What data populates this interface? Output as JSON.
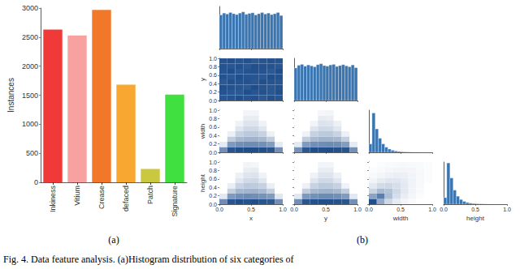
{
  "chart_data": [
    {
      "type": "bar",
      "ylabel": "Instances",
      "categories": [
        "Inkiness",
        "Vitium",
        "Crease",
        "defaced",
        "Patch",
        "Signature"
      ],
      "values": [
        2630,
        2530,
        2970,
        1680,
        230,
        1510
      ],
      "colors": [
        "#f03a3a",
        "#f7a1a1",
        "#f07828",
        "#f8a830",
        "#c9c83e",
        "#3fe03f"
      ],
      "ylim": [
        0,
        3000
      ],
      "yticks": [
        0,
        500,
        1000,
        1500,
        2000,
        2500,
        3000
      ],
      "grid": false
    },
    {
      "type": "histogram",
      "color": "#3b75af",
      "bins": [
        0,
        0.05,
        0.1,
        0.15,
        0.2,
        0.25,
        0.3,
        0.35,
        0.4,
        0.45,
        0.5,
        0.55,
        0.6,
        0.65,
        0.7,
        0.75,
        0.8,
        0.85,
        0.9,
        0.95,
        1
      ],
      "counts": [
        560,
        590,
        575,
        600,
        580,
        565,
        590,
        610,
        570,
        585,
        595,
        560,
        580,
        600,
        575,
        590,
        565,
        580,
        600,
        550
      ],
      "xlim": [
        0,
        1
      ],
      "ylim": [
        0,
        700
      ],
      "xticks": [
        {
          "value": 0,
          "label": "0.0"
        },
        0.5,
        {
          "value": 1,
          "label": "1.0"
        }
      ],
      "tick_labels": false
    },
    {
      "type": "heatmap",
      "color": "#1f4e8c",
      "ylabel": "y",
      "xbins": [
        0,
        0.125,
        0.25,
        0.375,
        0.5,
        0.625,
        0.75,
        0.875,
        1
      ],
      "ybins": [
        0,
        0.125,
        0.25,
        0.375,
        0.5,
        0.625,
        0.75,
        0.875,
        1
      ],
      "counts": [
        [
          175,
          182,
          190,
          178,
          185,
          172,
          188,
          180
        ],
        [
          183,
          176,
          171,
          192,
          180,
          186,
          174,
          189
        ],
        [
          190,
          185,
          178,
          170,
          194,
          181,
          176,
          183
        ],
        [
          172,
          188,
          184,
          186,
          175,
          190,
          182,
          177
        ],
        [
          186,
          174,
          192,
          181,
          179,
          173,
          191,
          185
        ],
        [
          179,
          191,
          176,
          184,
          188,
          182,
          170,
          194
        ],
        [
          184,
          177,
          187,
          173,
          190,
          185,
          183,
          176
        ],
        [
          181,
          189,
          180,
          188,
          172,
          178,
          186,
          182
        ]
      ],
      "xlim": [
        0,
        1
      ],
      "ylim": [
        0,
        1
      ],
      "xticks": [
        {
          "value": 0,
          "label": "0.0"
        },
        0.5,
        {
          "value": 1,
          "label": "1.0"
        }
      ],
      "yticks": [
        {
          "value": 0,
          "label": "0.0"
        },
        0.2,
        0.4,
        0.6,
        0.8,
        {
          "value": 1,
          "label": "1.0"
        }
      ],
      "tick_labels": "y"
    },
    {
      "type": "histogram",
      "color": "#3b75af",
      "bins": [
        0,
        0.05,
        0.1,
        0.15,
        0.2,
        0.25,
        0.3,
        0.35,
        0.4,
        0.45,
        0.5,
        0.55,
        0.6,
        0.65,
        0.7,
        0.75,
        0.8,
        0.85,
        0.9,
        0.95,
        1
      ],
      "counts": [
        540,
        585,
        600,
        570,
        590,
        575,
        560,
        595,
        610,
        580,
        570,
        590,
        600,
        565,
        580,
        595,
        575,
        560,
        590,
        545
      ],
      "xlim": [
        0,
        1
      ],
      "ylim": [
        0,
        700
      ],
      "xticks": [
        {
          "value": 0,
          "label": "0.0"
        },
        0.5,
        {
          "value": 1,
          "label": "1.0"
        }
      ],
      "tick_labels": false
    },
    {
      "type": "heatmap",
      "color": "#1f4e8c",
      "ylabel": "width",
      "xbins": [
        0,
        0.125,
        0.25,
        0.375,
        0.5,
        0.625,
        0.75,
        0.875,
        1
      ],
      "ybins": [
        0,
        0.125,
        0.25,
        0.375,
        0.5,
        0.625,
        0.75,
        0.875,
        1
      ],
      "counts": [
        [
          300,
          700,
          750,
          760,
          760,
          740,
          700,
          300
        ],
        [
          10,
          250,
          300,
          320,
          320,
          300,
          240,
          10
        ],
        [
          0,
          60,
          120,
          140,
          140,
          120,
          60,
          0
        ],
        [
          0,
          5,
          50,
          70,
          70,
          50,
          5,
          0
        ],
        [
          0,
          0,
          15,
          35,
          35,
          15,
          0,
          0
        ],
        [
          0,
          0,
          4,
          18,
          18,
          4,
          0,
          0
        ],
        [
          0,
          0,
          0,
          8,
          8,
          0,
          0,
          0
        ],
        [
          0,
          0,
          0,
          3,
          3,
          0,
          0,
          0
        ]
      ],
      "xlim": [
        0,
        1
      ],
      "ylim": [
        0,
        1
      ],
      "xticks": [
        {
          "value": 0,
          "label": "0.0"
        },
        0.5,
        {
          "value": 1,
          "label": "1.0"
        }
      ],
      "yticks": [
        {
          "value": 0,
          "label": "0.0"
        },
        0.2,
        0.4,
        0.6,
        0.8,
        {
          "value": 1,
          "label": "1.0"
        }
      ],
      "tick_labels": "y"
    },
    {
      "type": "heatmap",
      "color": "#1f4e8c",
      "xbins": [
        0,
        0.125,
        0.25,
        0.375,
        0.5,
        0.625,
        0.75,
        0.875,
        1
      ],
      "ybins": [
        0,
        0.125,
        0.25,
        0.375,
        0.5,
        0.625,
        0.75,
        0.875,
        1
      ],
      "counts": [
        [
          290,
          690,
          760,
          750,
          770,
          735,
          710,
          295
        ],
        [
          11,
          245,
          305,
          315,
          325,
          310,
          235,
          9
        ],
        [
          0,
          62,
          118,
          142,
          138,
          125,
          57,
          0
        ],
        [
          0,
          4,
          52,
          68,
          72,
          48,
          5,
          0
        ],
        [
          0,
          0,
          16,
          34,
          33,
          14,
          0,
          0
        ],
        [
          0,
          0,
          3,
          19,
          17,
          5,
          0,
          0
        ],
        [
          0,
          0,
          0,
          9,
          7,
          0,
          0,
          0
        ],
        [
          0,
          0,
          0,
          2,
          3,
          0,
          0,
          0
        ]
      ],
      "xlim": [
        0,
        1
      ],
      "ylim": [
        0,
        1
      ],
      "xticks": [
        {
          "value": 0,
          "label": "0.0"
        },
        0.5,
        {
          "value": 1,
          "label": "1.0"
        }
      ],
      "yticks": [
        {
          "value": 0,
          "label": "0.0"
        },
        0.2,
        0.4,
        0.6,
        0.8,
        {
          "value": 1,
          "label": "1.0"
        }
      ],
      "tick_labels": false
    },
    {
      "type": "histogram",
      "color": "#3b75af",
      "bins": [
        0,
        0.05,
        0.1,
        0.15,
        0.2,
        0.25,
        0.3,
        0.35,
        0.4,
        0.45,
        0.5,
        0.55,
        0.6,
        0.65,
        0.7,
        0.75,
        0.8,
        0.85,
        0.9,
        0.95,
        1
      ],
      "counts": [
        900,
        4200,
        2500,
        1500,
        900,
        550,
        350,
        220,
        140,
        90,
        60,
        40,
        25,
        15,
        10,
        6,
        4,
        2,
        1,
        1
      ],
      "xlim": [
        0,
        1
      ],
      "ylim": [
        0,
        4500
      ],
      "xticks": [
        {
          "value": 0,
          "label": "0.0"
        },
        0.5,
        {
          "value": 1,
          "label": "1.0"
        }
      ],
      "tick_labels": false
    },
    {
      "type": "heatmap",
      "color": "#1f4e8c",
      "xlabel": "x",
      "ylabel": "height",
      "xbins": [
        0,
        0.125,
        0.25,
        0.375,
        0.5,
        0.625,
        0.75,
        0.875,
        1
      ],
      "ybins": [
        0,
        0.125,
        0.25,
        0.375,
        0.5,
        0.625,
        0.75,
        0.875,
        1
      ],
      "counts": [
        [
          320,
          720,
          770,
          740,
          780,
          730,
          690,
          310
        ],
        [
          12,
          260,
          310,
          330,
          315,
          295,
          250,
          14
        ],
        [
          0,
          55,
          125,
          135,
          145,
          118,
          58,
          0
        ],
        [
          0,
          6,
          48,
          72,
          68,
          52,
          6,
          0
        ],
        [
          0,
          0,
          14,
          33,
          36,
          16,
          0,
          0
        ],
        [
          0,
          0,
          5,
          17,
          19,
          4,
          0,
          0
        ],
        [
          0,
          0,
          0,
          7,
          9,
          0,
          0,
          0
        ],
        [
          0,
          0,
          0,
          3,
          2,
          0,
          0,
          0
        ]
      ],
      "xlim": [
        0,
        1
      ],
      "ylim": [
        0,
        1
      ],
      "xticks": [
        {
          "value": 0,
          "label": "0.0"
        },
        0.5,
        {
          "value": 1,
          "label": "1.0"
        }
      ],
      "yticks": [
        {
          "value": 0,
          "label": "0.0"
        },
        0.2,
        0.4,
        0.6,
        0.8,
        {
          "value": 1,
          "label": "1.0"
        }
      ],
      "tick_labels": true
    },
    {
      "type": "heatmap",
      "color": "#1f4e8c",
      "xlabel": "y",
      "xbins": [
        0,
        0.125,
        0.25,
        0.375,
        0.5,
        0.625,
        0.75,
        0.875,
        1
      ],
      "ybins": [
        0,
        0.125,
        0.25,
        0.375,
        0.5,
        0.625,
        0.75,
        0.875,
        1
      ],
      "counts": [
        [
          310,
          705,
          745,
          770,
          750,
          725,
          700,
          305
        ],
        [
          13,
          255,
          295,
          325,
          330,
          305,
          245,
          12
        ],
        [
          0,
          58,
          122,
          138,
          142,
          121,
          62,
          0
        ],
        [
          0,
          5,
          49,
          71,
          69,
          51,
          4,
          0
        ],
        [
          0,
          0,
          15,
          36,
          34,
          15,
          0,
          0
        ],
        [
          0,
          0,
          4,
          18,
          18,
          5,
          0,
          0
        ],
        [
          0,
          0,
          0,
          8,
          8,
          0,
          0,
          0
        ],
        [
          0,
          0,
          0,
          3,
          3,
          0,
          0,
          0
        ]
      ],
      "xlim": [
        0,
        1
      ],
      "ylim": [
        0,
        1
      ],
      "xticks": [
        {
          "value": 0,
          "label": "0.0"
        },
        0.5,
        {
          "value": 1,
          "label": "1.0"
        }
      ],
      "yticks": [
        {
          "value": 0,
          "label": "0.0"
        },
        0.2,
        0.4,
        0.6,
        0.8,
        {
          "value": 1,
          "label": "1.0"
        }
      ],
      "tick_labels": "x"
    },
    {
      "type": "heatmap",
      "color": "#1f4e8c",
      "xlabel": "width",
      "xbins": [
        0,
        0.125,
        0.25,
        0.375,
        0.5,
        0.625,
        0.75,
        0.875,
        1
      ],
      "ybins": [
        0,
        0.125,
        0.25,
        0.375,
        0.5,
        0.625,
        0.75,
        0.875,
        1
      ],
      "counts": [
        [
          2600,
          600,
          120,
          30,
          8,
          2,
          0,
          0
        ],
        [
          700,
          1400,
          350,
          90,
          25,
          6,
          1,
          0
        ],
        [
          150,
          400,
          300,
          120,
          40,
          10,
          2,
          0
        ],
        [
          40,
          110,
          130,
          90,
          40,
          12,
          3,
          0
        ],
        [
          10,
          30,
          50,
          50,
          30,
          12,
          4,
          1
        ],
        [
          3,
          8,
          15,
          20,
          18,
          10,
          4,
          1
        ],
        [
          1,
          2,
          5,
          8,
          8,
          6,
          3,
          1
        ],
        [
          0,
          1,
          2,
          3,
          4,
          3,
          2,
          1
        ]
      ],
      "xlim": [
        0,
        1
      ],
      "ylim": [
        0,
        1
      ],
      "xticks": [
        {
          "value": 0,
          "label": "0.0"
        },
        0.5,
        {
          "value": 1,
          "label": "1.0"
        }
      ],
      "yticks": [
        {
          "value": 0,
          "label": "0.0"
        },
        0.2,
        0.4,
        0.6,
        0.8,
        {
          "value": 1,
          "label": "1.0"
        }
      ],
      "tick_labels": "x"
    },
    {
      "type": "histogram",
      "color": "#3b75af",
      "xlabel": "height",
      "bins": [
        0,
        0.05,
        0.1,
        0.15,
        0.2,
        0.25,
        0.3,
        0.35,
        0.4,
        0.45,
        0.5,
        0.55,
        0.6,
        0.65,
        0.7,
        0.75,
        0.8,
        0.85,
        0.9,
        0.95,
        1
      ],
      "counts": [
        700,
        4400,
        2800,
        1500,
        850,
        500,
        300,
        180,
        110,
        70,
        45,
        30,
        18,
        10,
        6,
        4,
        2,
        1,
        1,
        0
      ],
      "xlim": [
        0,
        1
      ],
      "ylim": [
        0,
        4500
      ],
      "xticks": [
        {
          "value": 0,
          "label": "0.0"
        },
        0.5,
        {
          "value": 1,
          "label": "1.0"
        }
      ],
      "tick_labels": "x"
    }
  ],
  "panel_labels": [
    "(a)",
    "(b)"
  ],
  "caption": "Fig. 4. Data feature analysis. (a)Histogram distribution of six categories of"
}
